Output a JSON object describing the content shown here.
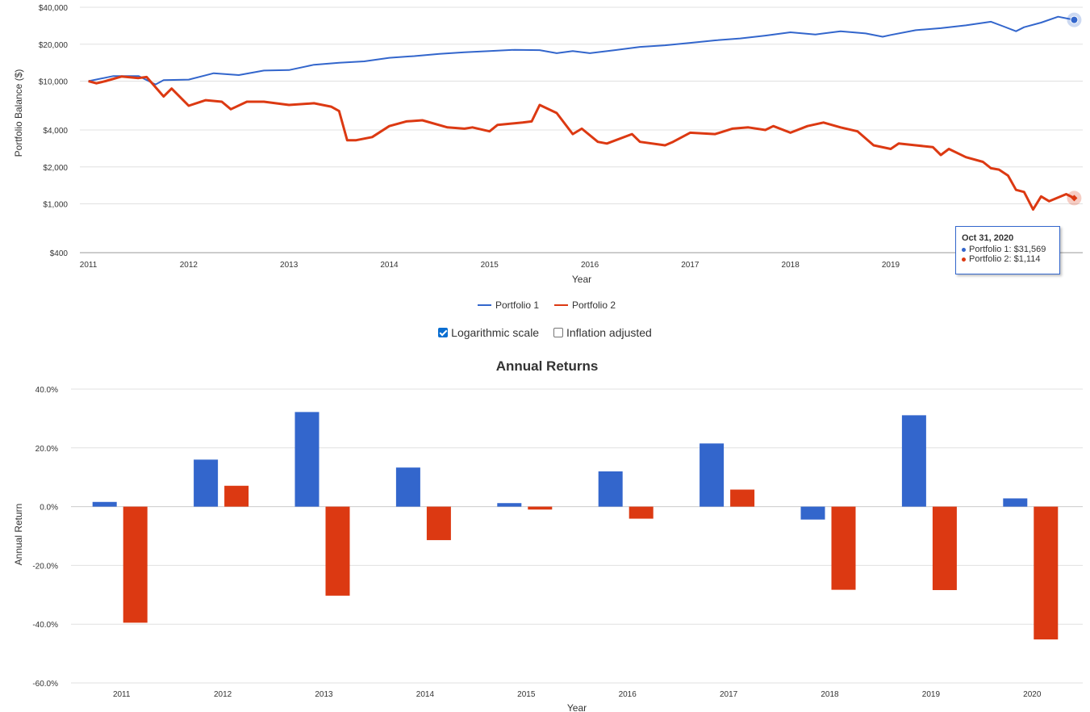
{
  "colors": {
    "portfolio1": "#3366cc",
    "portfolio2": "#dc3912",
    "grid": "#e0e0e0",
    "axis": "#333333"
  },
  "chart_data": [
    {
      "type": "line",
      "title": "",
      "xlabel": "Year",
      "ylabel": "Portfolio Balance ($)",
      "yscale": "log",
      "ylim": [
        400,
        40000
      ],
      "xlim": [
        2011.0,
        2020.83
      ],
      "y_ticks": [
        400,
        1000,
        2000,
        4000,
        10000,
        20000,
        40000
      ],
      "y_tick_labels": [
        "$400",
        "$1,000",
        "$2,000",
        "$4,000",
        "$10,000",
        "$20,000",
        "$40,000"
      ],
      "x_ticks": [
        2011,
        2012,
        2013,
        2014,
        2015,
        2016,
        2017,
        2018,
        2019
      ],
      "x_tick_labels": [
        "2011",
        "2012",
        "2013",
        "2014",
        "2015",
        "2016",
        "2017",
        "2018",
        "2019"
      ],
      "legend": [
        "Portfolio 1",
        "Portfolio 2"
      ],
      "legend_position": "bottom",
      "series": [
        {
          "name": "Portfolio 1",
          "points": [
            [
              2011.0,
              10000
            ],
            [
              2011.25,
              11000
            ],
            [
              2011.5,
              11000
            ],
            [
              2011.67,
              9400
            ],
            [
              2011.75,
              10200
            ],
            [
              2012.0,
              10300
            ],
            [
              2012.25,
              11600
            ],
            [
              2012.5,
              11200
            ],
            [
              2012.75,
              12200
            ],
            [
              2013.0,
              12300
            ],
            [
              2013.25,
              13600
            ],
            [
              2013.5,
              14100
            ],
            [
              2013.75,
              14500
            ],
            [
              2014.0,
              15500
            ],
            [
              2014.25,
              16000
            ],
            [
              2014.5,
              16700
            ],
            [
              2014.75,
              17200
            ],
            [
              2015.0,
              17600
            ],
            [
              2015.25,
              18000
            ],
            [
              2015.5,
              17900
            ],
            [
              2015.67,
              16900
            ],
            [
              2015.83,
              17600
            ],
            [
              2016.0,
              16900
            ],
            [
              2016.25,
              17900
            ],
            [
              2016.5,
              19000
            ],
            [
              2016.75,
              19600
            ],
            [
              2017.0,
              20500
            ],
            [
              2017.25,
              21500
            ],
            [
              2017.5,
              22300
            ],
            [
              2017.75,
              23500
            ],
            [
              2018.0,
              25000
            ],
            [
              2018.25,
              24000
            ],
            [
              2018.5,
              25500
            ],
            [
              2018.75,
              24500
            ],
            [
              2018.92,
              23000
            ],
            [
              2019.0,
              23800
            ],
            [
              2019.25,
              26000
            ],
            [
              2019.5,
              27000
            ],
            [
              2019.75,
              28500
            ],
            [
              2020.0,
              30500
            ],
            [
              2020.12,
              28000
            ],
            [
              2020.25,
              25500
            ],
            [
              2020.33,
              27500
            ],
            [
              2020.5,
              30000
            ],
            [
              2020.67,
              33500
            ],
            [
              2020.83,
              31569
            ]
          ]
        },
        {
          "name": "Portfolio 2",
          "points": [
            [
              2011.0,
              10000
            ],
            [
              2011.08,
              9600
            ],
            [
              2011.17,
              10000
            ],
            [
              2011.33,
              10900
            ],
            [
              2011.5,
              10600
            ],
            [
              2011.58,
              10800
            ],
            [
              2011.75,
              7500
            ],
            [
              2011.83,
              8700
            ],
            [
              2012.0,
              6300
            ],
            [
              2012.17,
              7000
            ],
            [
              2012.33,
              6800
            ],
            [
              2012.42,
              5900
            ],
            [
              2012.58,
              6800
            ],
            [
              2012.75,
              6800
            ],
            [
              2013.0,
              6400
            ],
            [
              2013.25,
              6600
            ],
            [
              2013.42,
              6200
            ],
            [
              2013.5,
              5700
            ],
            [
              2013.58,
              3300
            ],
            [
              2013.67,
              3300
            ],
            [
              2013.83,
              3500
            ],
            [
              2014.0,
              4300
            ],
            [
              2014.17,
              4700
            ],
            [
              2014.33,
              4800
            ],
            [
              2014.58,
              4200
            ],
            [
              2014.75,
              4100
            ],
            [
              2014.83,
              4200
            ],
            [
              2015.0,
              3900
            ],
            [
              2015.08,
              4400
            ],
            [
              2015.33,
              4600
            ],
            [
              2015.42,
              4700
            ],
            [
              2015.5,
              6400
            ],
            [
              2015.67,
              5500
            ],
            [
              2015.83,
              3700
            ],
            [
              2015.92,
              4100
            ],
            [
              2016.08,
              3200
            ],
            [
              2016.17,
              3100
            ],
            [
              2016.42,
              3700
            ],
            [
              2016.5,
              3200
            ],
            [
              2016.75,
              3000
            ],
            [
              2016.83,
              3200
            ],
            [
              2017.0,
              3800
            ],
            [
              2017.25,
              3700
            ],
            [
              2017.42,
              4100
            ],
            [
              2017.58,
              4200
            ],
            [
              2017.75,
              4000
            ],
            [
              2017.83,
              4300
            ],
            [
              2018.0,
              3800
            ],
            [
              2018.17,
              4300
            ],
            [
              2018.33,
              4600
            ],
            [
              2018.5,
              4200
            ],
            [
              2018.67,
              3900
            ],
            [
              2018.83,
              3000
            ],
            [
              2019.0,
              2800
            ],
            [
              2019.08,
              3100
            ],
            [
              2019.25,
              3000
            ],
            [
              2019.42,
              2900
            ],
            [
              2019.5,
              2500
            ],
            [
              2019.58,
              2800
            ],
            [
              2019.75,
              2400
            ],
            [
              2019.92,
              2200
            ],
            [
              2020.0,
              1950
            ],
            [
              2020.08,
              1900
            ],
            [
              2020.17,
              1700
            ],
            [
              2020.25,
              1300
            ],
            [
              2020.33,
              1250
            ],
            [
              2020.42,
              900
            ],
            [
              2020.5,
              1150
            ],
            [
              2020.58,
              1050
            ],
            [
              2020.75,
              1200
            ],
            [
              2020.83,
              1114
            ]
          ]
        }
      ],
      "tooltip": {
        "date": "Oct 31, 2020",
        "rows": [
          "Portfolio 1: $31,569",
          "Portfolio 2: $1,114"
        ]
      }
    },
    {
      "type": "bar",
      "title": "Annual Returns",
      "xlabel": "Year",
      "ylabel": "Annual Return",
      "ylim": [
        -60,
        40
      ],
      "y_ticks": [
        40,
        20,
        0,
        -20,
        -40,
        -60
      ],
      "y_tick_labels": [
        "40.0%",
        "20.0%",
        "0.0%",
        "-20.0%",
        "-40.0%",
        "-60.0%"
      ],
      "categories": [
        "2011",
        "2012",
        "2013",
        "2014",
        "2015",
        "2016",
        "2017",
        "2018",
        "2019",
        "2020"
      ],
      "series": [
        {
          "name": "Portfolio 1",
          "values": [
            1.6,
            16.0,
            32.2,
            13.3,
            1.2,
            12.0,
            21.5,
            -4.4,
            31.1,
            2.8
          ]
        },
        {
          "name": "Portfolio 2",
          "values": [
            -39.5,
            7.1,
            -30.3,
            -11.4,
            -1.0,
            -4.1,
            5.8,
            -28.3,
            -28.4,
            -45.2
          ]
        }
      ]
    }
  ],
  "options": {
    "log_scale_label": "Logarithmic scale",
    "log_scale_checked": true,
    "inflation_label": "Inflation adjusted",
    "inflation_checked": false
  }
}
